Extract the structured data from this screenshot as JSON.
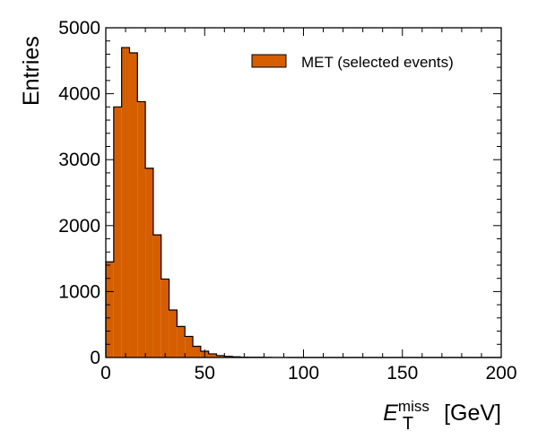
{
  "chart_data": {
    "type": "bar",
    "histogram": true,
    "bin_edges": [
      0,
      4,
      8,
      12,
      16,
      20,
      24,
      28,
      32,
      36,
      40,
      44,
      48,
      52,
      56,
      60,
      64,
      68,
      72,
      76,
      80,
      84,
      88,
      92,
      96,
      100,
      104,
      108,
      112,
      116,
      120,
      124,
      128,
      132,
      136,
      140,
      144,
      148,
      152,
      156,
      160,
      164,
      168,
      172,
      176,
      180,
      184,
      188,
      192,
      196,
      200
    ],
    "values": [
      1450,
      3800,
      4700,
      4620,
      3880,
      2870,
      1860,
      1190,
      720,
      470,
      320,
      170,
      95,
      55,
      30,
      18,
      10,
      6,
      4,
      3,
      2,
      1,
      1,
      0,
      0,
      0,
      0,
      0,
      0,
      0,
      0,
      0,
      0,
      0,
      0,
      0,
      0,
      0,
      0,
      0,
      0,
      0,
      0,
      0,
      0,
      0,
      0,
      0,
      0,
      0
    ],
    "xlabel": {
      "symbol": "E",
      "subscript": "T",
      "superscript": "miss",
      "unit": "[GeV]"
    },
    "ylabel": "Entries",
    "xlim": [
      0,
      200
    ],
    "ylim": [
      0,
      5000
    ],
    "xticks": [
      0,
      50,
      100,
      150,
      200
    ],
    "yticks": [
      0,
      1000,
      2000,
      3000,
      4000,
      5000
    ],
    "x_minor_step": 10,
    "y_minor_step": 200,
    "grid": false,
    "legend": {
      "position": "top-right",
      "label": "MET (selected events)"
    },
    "colors": {
      "fill": "#d55e00",
      "edge": "#000000"
    }
  }
}
